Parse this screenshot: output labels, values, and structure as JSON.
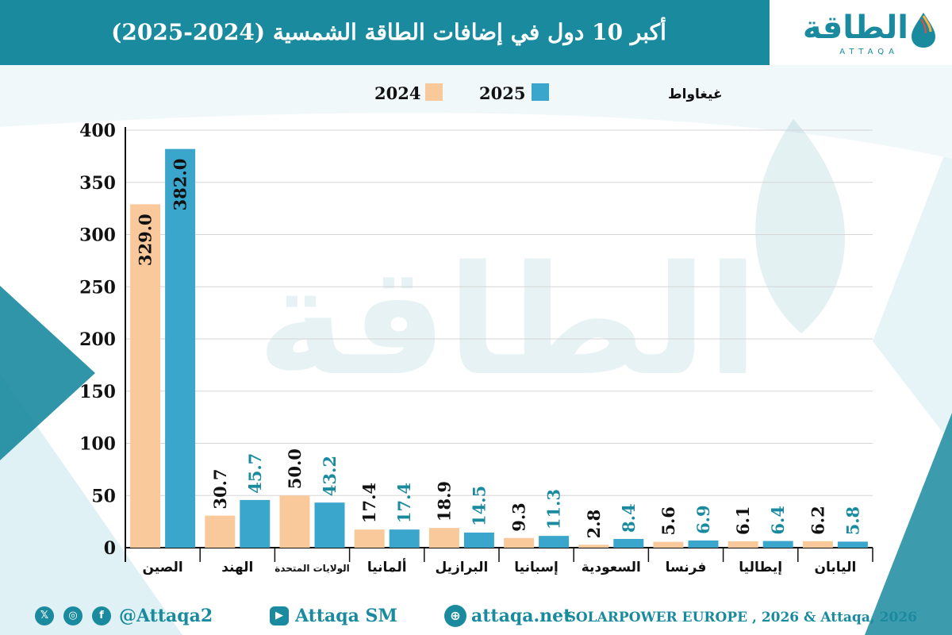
{
  "title": "أكبر 10 دول في إضافات الطاقة الشمسية (2024-2025)",
  "logo": {
    "main": "الطاقة",
    "sub": "ATTAQA"
  },
  "colors": {
    "y2024": "#f9c99b",
    "y2025": "#3aa6cc",
    "accent": "#1a8a9f"
  },
  "chart_data": {
    "type": "bar",
    "title": "أكبر 10 دول في إضافات الطاقة الشمسية (2024-2025)",
    "unit": "غيغاواط",
    "ylim": [
      0,
      400
    ],
    "yticks": [
      0,
      50,
      100,
      150,
      200,
      250,
      300,
      350,
      400
    ],
    "grid": true,
    "legend": "top",
    "categories": [
      "الصين",
      "الهند",
      "الولايات المتحدة",
      "ألمانيا",
      "البرازيل",
      "إسبانيا",
      "السعودية",
      "فرنسا",
      "إيطاليا",
      "اليابان"
    ],
    "series": [
      {
        "name": "2024",
        "values": [
          329.0,
          30.7,
          50.0,
          17.4,
          18.9,
          9.3,
          2.8,
          5.6,
          6.1,
          6.2
        ]
      },
      {
        "name": "2025",
        "values": [
          382.0,
          45.7,
          43.2,
          17.4,
          14.5,
          11.3,
          8.4,
          6.9,
          6.4,
          5.8
        ]
      }
    ]
  },
  "footer": {
    "social_handle": "@Attaqa2",
    "youtube": "Attaqa SM",
    "website": "attaqa.net",
    "source": "SOLARPOWER EUROPE , 2026 & Attaqa, 2026",
    "icons": [
      "x-icon",
      "instagram-icon",
      "facebook-icon",
      "youtube-icon",
      "globe-icon"
    ]
  }
}
